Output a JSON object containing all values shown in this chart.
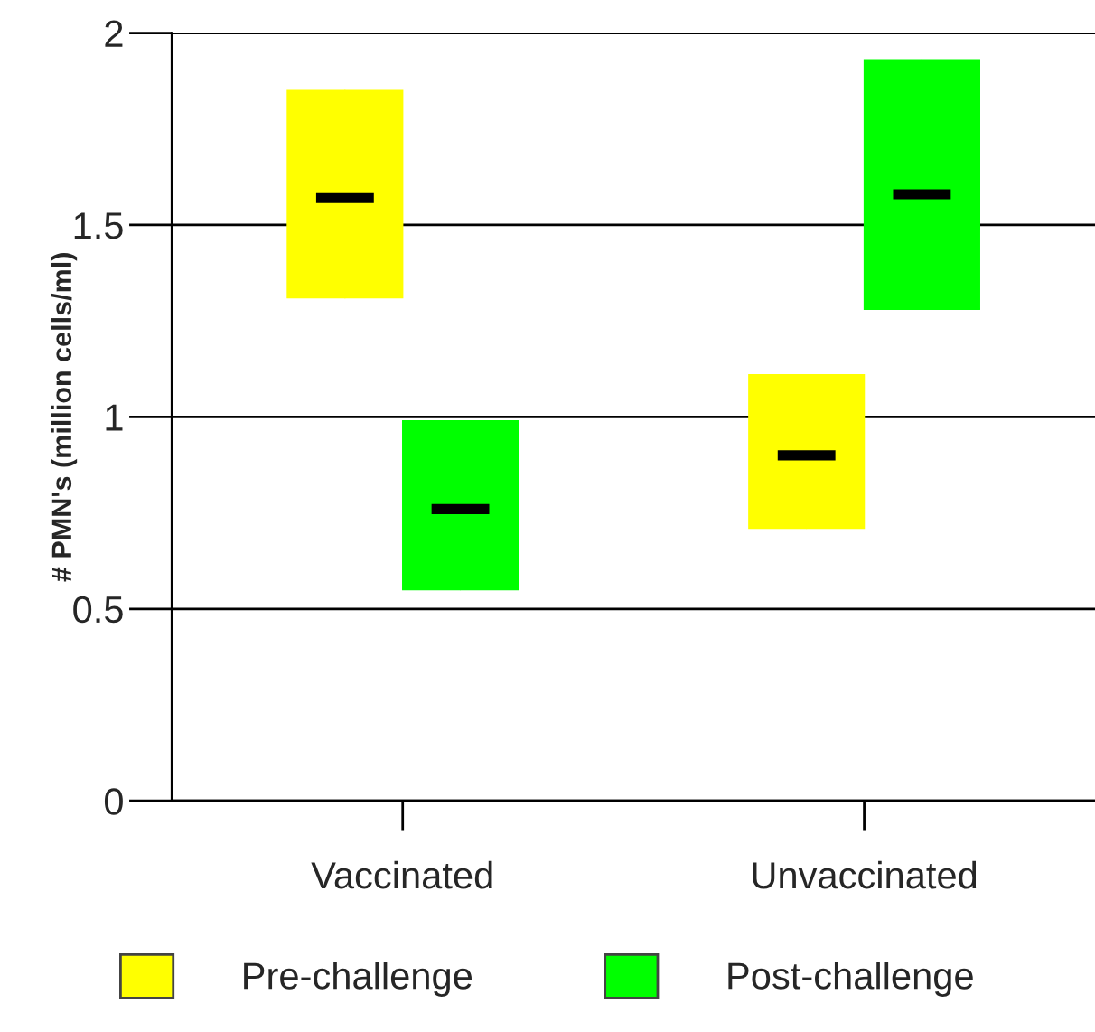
{
  "chart_data": {
    "type": "box",
    "ylabel": "# PMN's (million cells/ml)",
    "categories": [
      "Vaccinated",
      "Unvaccinated"
    ],
    "series": [
      {
        "name": "Pre-challenge",
        "color": "#ffff00",
        "boxes": [
          {
            "low": 1.31,
            "q1": 1.31,
            "median": 1.57,
            "q3": 1.85,
            "high": 1.85
          },
          {
            "low": 0.71,
            "q1": 0.71,
            "median": 0.9,
            "q3": 1.11,
            "high": 1.11
          }
        ]
      },
      {
        "name": "Post-challenge",
        "color": "#00ff00",
        "boxes": [
          {
            "low": 0.55,
            "q1": 0.55,
            "median": 0.76,
            "q3": 0.99,
            "high": 0.99
          },
          {
            "low": 1.28,
            "q1": 1.28,
            "median": 1.58,
            "q3": 1.93,
            "high": 1.93
          }
        ]
      }
    ],
    "ylim": [
      0,
      2
    ],
    "yticks": [
      0,
      0.5,
      1,
      1.5,
      2
    ],
    "grid": "y",
    "legend": "bottom"
  }
}
